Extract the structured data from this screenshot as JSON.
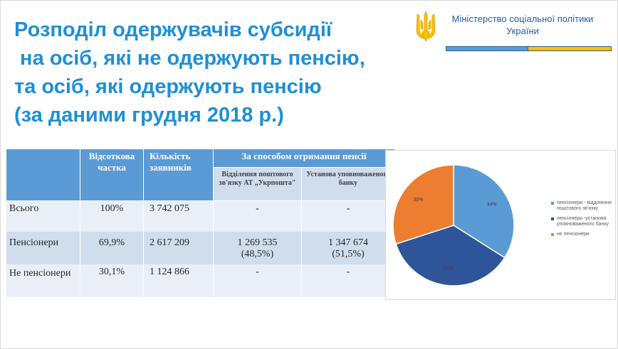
{
  "title_lines": [
    "Розподіл одержувачів субсидії",
    " на осіб, які не одержують пенсію,",
    "та осіб, які одержують пенсію",
    "(за даними грудня 2018 р.)"
  ],
  "ministry": {
    "line1": "Міністерство соціальної політики",
    "line2": "України"
  },
  "table": {
    "headers": {
      "share": "Відсоткова частка",
      "count": "Кількість заявників",
      "group": "За способом отримання пенсії",
      "post": "Відділення поштового зв'язку АТ „Укрпошта\"",
      "bank": "Установа уповноваженого банку"
    },
    "rows": [
      {
        "label": "Всього",
        "share": "100%",
        "count": "3 742 075",
        "post": "-",
        "bank": "-"
      },
      {
        "label": "Пенсіонери",
        "share": "69,9%",
        "count": "2 617 209",
        "post": "1 269 535\n(48,5%)",
        "bank": "1 347 674\n(51,5%)"
      },
      {
        "label": "Не пенсіонери",
        "share": "30,1%",
        "count": "1 124 866",
        "post": "-",
        "bank": "-"
      }
    ]
  },
  "chart_data": {
    "type": "pie",
    "series": [
      {
        "name": "пенсіонери - відділення поштового зв'язку",
        "value": 34,
        "label": "34%",
        "color": "#5b9bd5"
      },
      {
        "name": "пенсіонери -установа уповноваженого банку",
        "value": 36,
        "label": "36%",
        "color": "#2e5597"
      },
      {
        "name": "не пенсіонери",
        "value": 30,
        "label": "30%",
        "color": "#ed7d31"
      }
    ],
    "legend_position": "right"
  }
}
